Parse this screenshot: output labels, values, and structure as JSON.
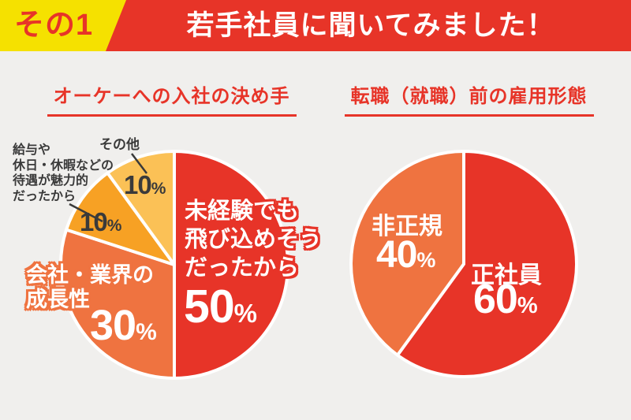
{
  "page": {
    "background": "#f0efed"
  },
  "header": {
    "badge_label": "その1",
    "badge_bg": "#f5e100",
    "badge_text_color": "#e73428",
    "title": "若手社員に聞いてみました！",
    "banner_bg": "#e73428",
    "title_color": "#ffffff"
  },
  "styles": {
    "accent_red": "#e73428",
    "orange": "#ef7340",
    "amber": "#f7a124",
    "gold": "#fbc156",
    "dark_label": "#3a3a3a",
    "background": "#f0efed"
  },
  "chart_data": [
    {
      "type": "pie",
      "title": "オーケーへの入社の決め手",
      "unit": "%",
      "start_angle_deg": 0,
      "direction": "clockwise",
      "legend_position": "none",
      "slices": [
        {
          "label": "未経験でも飛び込めそうだったから",
          "display": "未経験でも\n飛び込めそう\nだったから",
          "value": 50,
          "color": "#e73428"
        },
        {
          "label": "会社・業界の成長性",
          "display": "会社・業界の\n成長性",
          "value": 30,
          "color": "#ef7340"
        },
        {
          "label": "給与や休日・休暇などの待遇が魅力的だったから",
          "display": "給与や\n休日・休暇などの\n待遇が魅力的\nだったから",
          "value": 10,
          "color": "#f7a124"
        },
        {
          "label": "その他",
          "display": "その他",
          "value": 10,
          "color": "#fbc156"
        }
      ]
    },
    {
      "type": "pie",
      "title": "転職（就職）前の雇用形態",
      "unit": "%",
      "start_angle_deg": 0,
      "direction": "clockwise",
      "legend_position": "none",
      "slices": [
        {
          "label": "正社員",
          "display": "正社員",
          "value": 60,
          "color": "#e73428"
        },
        {
          "label": "非正規",
          "display": "非正規",
          "value": 40,
          "color": "#ef7340"
        }
      ]
    }
  ]
}
